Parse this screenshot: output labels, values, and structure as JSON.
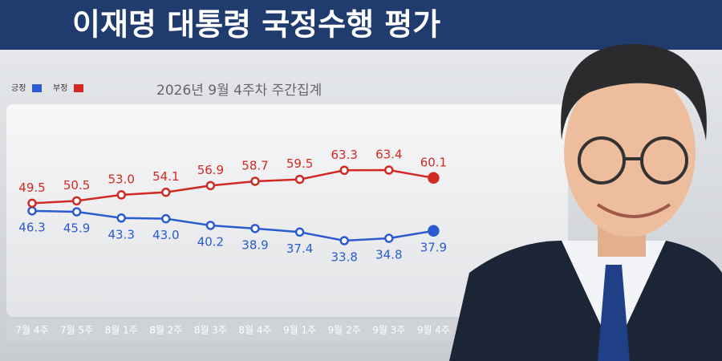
{
  "chart_data": {
    "type": "line",
    "title": "이재명 대통령 국정수행 평가",
    "subtitle": "2026년 9월 4주차 주간집계",
    "categories": [
      "7월 4주",
      "7월 5주",
      "8월 1주",
      "8월 2주",
      "8월 3주",
      "8월 4주",
      "9월 1주",
      "9월 2주",
      "9월 3주",
      "9월 4주"
    ],
    "series": [
      {
        "name": "긍정",
        "color": "#2a5bd0",
        "values": [
          46.3,
          45.9,
          43.3,
          43.0,
          40.2,
          38.9,
          37.4,
          33.8,
          34.8,
          37.9
        ],
        "value_labels": [
          "46.3",
          "45.9",
          "43.3",
          "43.0",
          "40.2",
          "38.9",
          "37.4",
          "33.8",
          "34.8",
          "37.9"
        ]
      },
      {
        "name": "부정",
        "color": "#d12a24",
        "values": [
          49.5,
          50.5,
          53.0,
          54.1,
          56.9,
          58.7,
          59.5,
          63.3,
          63.4,
          60.1
        ],
        "value_labels": [
          "49.5",
          "50.5",
          "53.0",
          "54.1",
          "56.9",
          "58.7",
          "59.5",
          "63.3",
          "63.4",
          "60.1"
        ]
      }
    ]
  }
}
